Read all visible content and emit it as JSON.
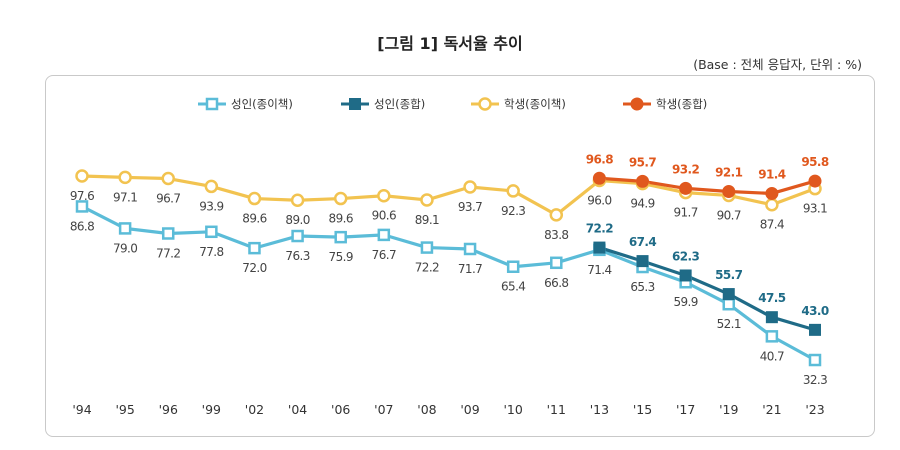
{
  "chart_data": {
    "type": "line",
    "title": "[그림 1] 독서율 추이",
    "subtitle": "(Base : 전체 응답자, 단위 : %)",
    "categories": [
      "'94",
      "'95",
      "'96",
      "'99",
      "'02",
      "'04",
      "'06",
      "'07",
      "'08",
      "'09",
      "'10",
      "'11",
      "'13",
      "'15",
      "'17",
      "'19",
      "'21",
      "'23"
    ],
    "legend_position": "top",
    "grid": false,
    "series": [
      {
        "name": "성인(종이책)",
        "color": "#5bbcd8",
        "marker": "hollow-square",
        "label_pos": "below",
        "values": [
          86.8,
          79.0,
          77.2,
          77.8,
          72.0,
          76.3,
          75.9,
          76.7,
          72.2,
          71.7,
          65.4,
          66.8,
          71.4,
          65.3,
          59.9,
          52.1,
          40.7,
          32.3
        ]
      },
      {
        "name": "성인(종합)",
        "color": "#1f6b87",
        "marker": "filled-square",
        "label_pos": "above",
        "values": [
          null,
          null,
          null,
          null,
          null,
          null,
          null,
          null,
          null,
          null,
          null,
          null,
          72.2,
          67.4,
          62.3,
          55.7,
          47.5,
          43.0
        ]
      },
      {
        "name": "학생(종이책)",
        "color": "#f2c350",
        "marker": "hollow-circle",
        "label_pos": "below",
        "values": [
          97.6,
          97.1,
          96.7,
          93.9,
          89.6,
          89.0,
          89.6,
          90.6,
          89.1,
          93.7,
          92.3,
          83.8,
          96.0,
          94.9,
          91.7,
          90.7,
          87.4,
          93.1
        ]
      },
      {
        "name": "학생(종합)",
        "color": "#e0581e",
        "marker": "filled-circle",
        "label_pos": "above",
        "values": [
          null,
          null,
          null,
          null,
          null,
          null,
          null,
          null,
          null,
          null,
          null,
          null,
          96.8,
          95.7,
          93.2,
          92.1,
          91.4,
          95.8
        ]
      }
    ]
  }
}
